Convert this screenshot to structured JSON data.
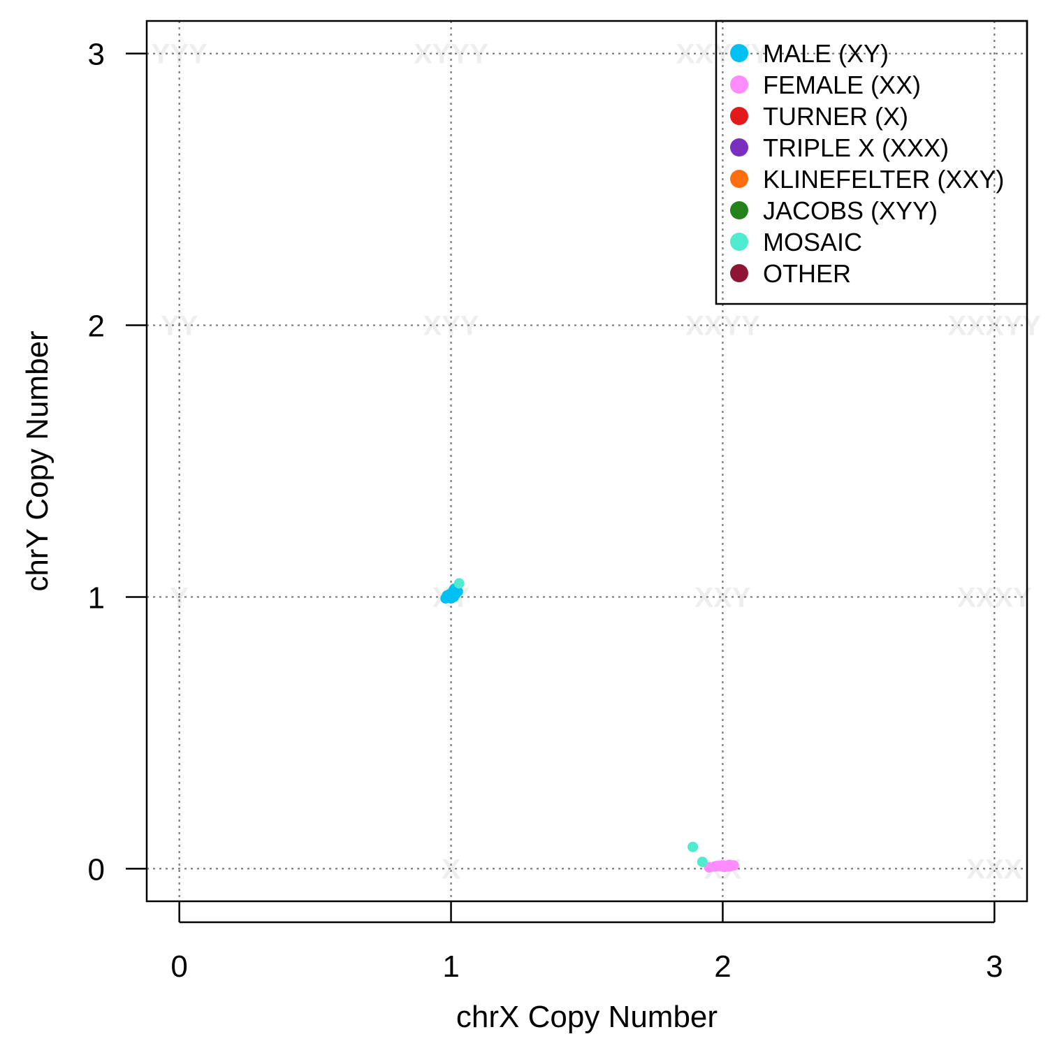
{
  "chart_data": {
    "type": "scatter",
    "xlabel": "chrX Copy Number",
    "ylabel": "chrY Copy Number",
    "xlim": [
      -0.12,
      3.12
    ],
    "ylim": [
      -0.12,
      3.12
    ],
    "x_ticks": [
      "0",
      "1",
      "2",
      "3"
    ],
    "y_ticks": [
      "0",
      "1",
      "2",
      "3"
    ],
    "grid": true,
    "legend_position": "top-right",
    "karyotype_labels": [
      {
        "text": "YYY",
        "x": 0,
        "y": 3
      },
      {
        "text": "XYYY",
        "x": 1,
        "y": 3
      },
      {
        "text": "XXYYY",
        "x": 2,
        "y": 3
      },
      {
        "text": "YY",
        "x": 0,
        "y": 2
      },
      {
        "text": "XYY",
        "x": 1,
        "y": 2
      },
      {
        "text": "XXYY",
        "x": 2,
        "y": 2
      },
      {
        "text": "XXXYY",
        "x": 3,
        "y": 2
      },
      {
        "text": "Y",
        "x": 0,
        "y": 1
      },
      {
        "text": "XY",
        "x": 1,
        "y": 1
      },
      {
        "text": "XXY",
        "x": 2,
        "y": 1
      },
      {
        "text": "XXXY",
        "x": 3,
        "y": 1
      },
      {
        "text": "X",
        "x": 1,
        "y": 0
      },
      {
        "text": "XX",
        "x": 2,
        "y": 0
      },
      {
        "text": "XXX",
        "x": 3,
        "y": 0
      }
    ],
    "series": [
      {
        "name": "MALE (XY)",
        "color": "#00BFF2",
        "points": [
          [
            0.98,
            0.995
          ],
          [
            0.99,
            1.0
          ],
          [
            1.0,
            1.005
          ],
          [
            1.005,
            1.01
          ],
          [
            1.01,
            1.015
          ],
          [
            1.015,
            1.02
          ],
          [
            1.02,
            1.025
          ],
          [
            1.01,
            1.0
          ],
          [
            0.995,
            1.01
          ],
          [
            1.025,
            1.02
          ],
          [
            1.0,
            0.995
          ],
          [
            1.012,
            1.03
          ],
          [
            0.985,
            1.005
          ],
          [
            1.018,
            1.012
          ],
          [
            1.008,
            1.022
          ]
        ]
      },
      {
        "name": "FEMALE (XX)",
        "color": "#FF8CFF",
        "points": [
          [
            1.95,
            0.005
          ],
          [
            1.97,
            0.008
          ],
          [
            1.99,
            0.01
          ],
          [
            2.0,
            0.012
          ],
          [
            2.01,
            0.01
          ],
          [
            2.02,
            0.008
          ],
          [
            2.03,
            0.01
          ],
          [
            2.04,
            0.012
          ],
          [
            1.98,
            0.01
          ],
          [
            2.005,
            0.006
          ],
          [
            2.025,
            0.014
          ]
        ]
      },
      {
        "name": "TURNER (X)",
        "color": "#E31A1C",
        "points": []
      },
      {
        "name": "TRIPLE X (XXX)",
        "color": "#7B2FBE",
        "points": []
      },
      {
        "name": "KLINEFELTER (XXY)",
        "color": "#FF6F0F",
        "points": []
      },
      {
        "name": "JACOBS (XYY)",
        "color": "#23831A",
        "points": []
      },
      {
        "name": "MOSAIC",
        "color": "#4FEBCF",
        "points": [
          [
            1.03,
            1.05
          ],
          [
            1.89,
            0.08
          ],
          [
            1.925,
            0.025
          ]
        ]
      },
      {
        "name": "OTHER",
        "color": "#8E1535",
        "points": []
      }
    ]
  }
}
